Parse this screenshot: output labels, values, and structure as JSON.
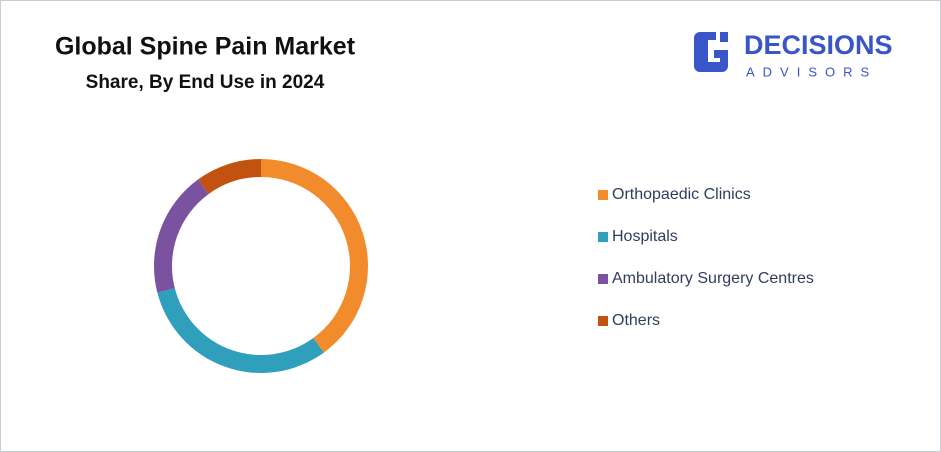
{
  "chart_data": {
    "type": "donut",
    "title": "Global Spine Pain Market",
    "subtitle": "Share, By End Use in 2024",
    "categories": [
      "Orthopaedic Clinics",
      "Hospitals",
      "Ambulatory Surgery Centres",
      "Others"
    ],
    "values": [
      40,
      31,
      19,
      10
    ],
    "colors": [
      "#f28b2c",
      "#2f9fbb",
      "#7b529f",
      "#c2520f"
    ],
    "legend": "right"
  },
  "logo": {
    "name": "DECISIONS",
    "tagline": "ADVISORS"
  }
}
